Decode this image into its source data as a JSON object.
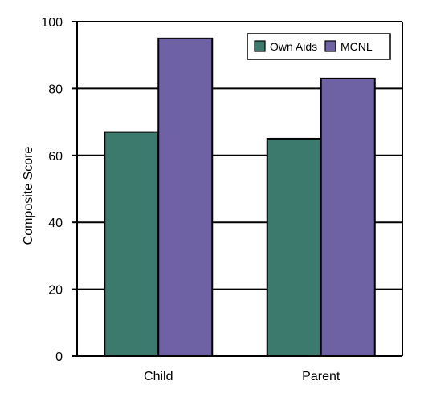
{
  "chart_data": {
    "type": "bar",
    "title": "",
    "xlabel": "",
    "ylabel": "Composite Score",
    "ylim": [
      0,
      100
    ],
    "yticks": [
      0,
      20,
      40,
      60,
      80,
      100
    ],
    "grid": "horizontal",
    "legend_position": "top-right",
    "categories": [
      "Child",
      "Parent"
    ],
    "series": [
      {
        "name": "Own Aids",
        "values": [
          67,
          65
        ],
        "color": "#3b7a6d"
      },
      {
        "name": "MCNL",
        "values": [
          95,
          83
        ],
        "color": "#6f62a4"
      }
    ]
  }
}
